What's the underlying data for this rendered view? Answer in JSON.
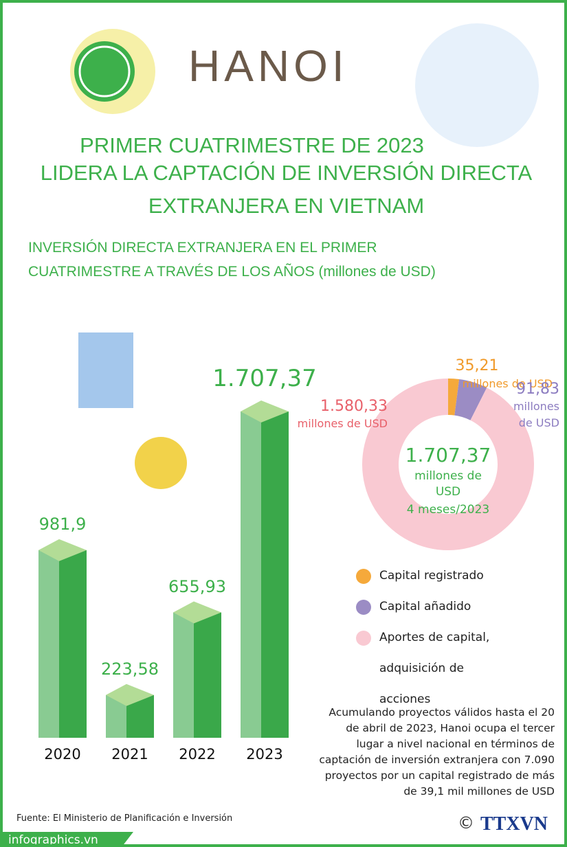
{
  "header": {
    "logo_text": "HANOI",
    "title": [
      "PRIMER CUATRIMESTRE DE 2023",
      "LIDERA LA CAPTACIÓN DE INVERSIÓN DIRECTA",
      "EXTRANJERA EN VIETNAM"
    ],
    "subtitle": [
      "INVERSIÓN DIRECTA EXTRANJERA EN EL PRIMER",
      "CUATRIMESTRE A TRAVÉS DE LOS AÑOS (millones de USD)"
    ]
  },
  "chart_data": [
    {
      "type": "bar",
      "categories": [
        "2020",
        "2021",
        "2022",
        "2023"
      ],
      "values": [
        981.9,
        223.58,
        655.93,
        1707.37
      ],
      "value_labels": [
        "981,9",
        "223,58",
        "655,93",
        "1.707,37"
      ],
      "color": "#3aa84a"
    },
    {
      "type": "donut",
      "categories": [
        "Capital registrado",
        "Capital añadido",
        "Aportes de capital, adquisición de acciones"
      ],
      "values": [
        35.21,
        91.83,
        1580.33
      ],
      "value_labels": [
        "35,21",
        "91,83",
        "1.580,33"
      ],
      "unit_label": "millones de USD",
      "colors": [
        "#f5a93b",
        "#9b8cc4",
        "#f9c9d2"
      ],
      "label_colors": [
        "#f09a2a",
        "#8c7cc0",
        "#e8606a"
      ],
      "center_label": "1.707,37",
      "center_sublabel": "millones de USD",
      "center_note": "4 meses/2023"
    }
  ],
  "note": "Acumulando proyectos válidos hasta el 20 de abril de 2023, Hanoi ocupa el tercer lugar a nivel nacional en términos de captación de inversión extranjera con 7.090 proyectos por un capital registrado de más de 39,1 mil millones de USD",
  "source": "Fuente: El Ministerio de Planificación e Inversión",
  "footer": {
    "site": "infographics.vn",
    "copyright": "©",
    "agency": "TTXVN"
  }
}
